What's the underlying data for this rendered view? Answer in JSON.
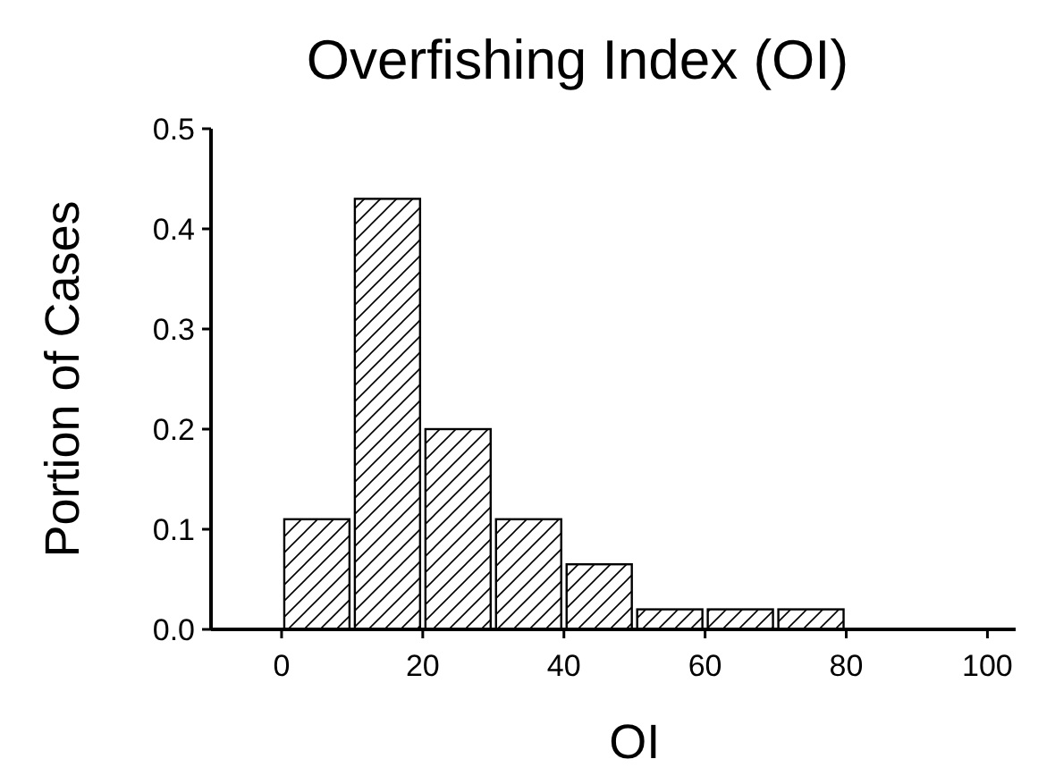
{
  "chart_data": {
    "type": "histogram",
    "title": "Overfishing Index (OI)",
    "xlabel": "OI",
    "ylabel": "Portion of Cases",
    "bins": [
      0,
      10,
      20,
      30,
      40,
      50,
      60,
      70,
      80
    ],
    "values": [
      0.11,
      0.43,
      0.2,
      0.11,
      0.065,
      0.02,
      0.02,
      0.02
    ],
    "color": "#000000",
    "xlim": [
      -10,
      104
    ],
    "xticks": [
      0,
      20,
      40,
      60,
      80,
      100
    ],
    "ylim": [
      0,
      0.5
    ],
    "yticks": [
      {
        "value": 0,
        "label": "0.0"
      },
      {
        "value": 0.1,
        "label": "0.1"
      },
      {
        "value": 0.2,
        "label": "0.2"
      },
      {
        "value": 0.3,
        "label": "0.3"
      },
      {
        "value": 0.4,
        "label": "0.4"
      },
      {
        "value": 0.5,
        "label": "0.5"
      }
    ]
  }
}
